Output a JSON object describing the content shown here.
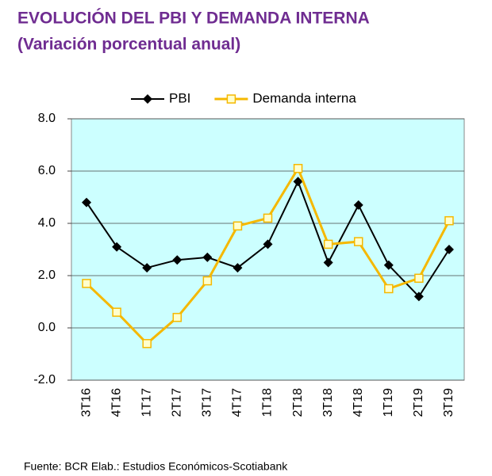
{
  "chart_data": {
    "type": "line",
    "title": "EVOLUCIÓN DEL PBI Y DEMANDA INTERNA",
    "subtitle": "(Variación porcentual anual)",
    "source": "Fuente: BCR  Elab.: Estudios Económicos-Scotiabank",
    "categories": [
      "3T16",
      "4T16",
      "1T17",
      "2T17",
      "3T17",
      "4T17",
      "1T18",
      "2T18",
      "3T18",
      "4T18",
      "1T19",
      "2T19",
      "3T19"
    ],
    "series": [
      {
        "name": "PBI",
        "color": "#000000",
        "values": [
          4.8,
          3.1,
          2.3,
          2.6,
          2.7,
          2.3,
          3.2,
          5.6,
          2.5,
          4.7,
          2.4,
          1.2,
          3.0
        ]
      },
      {
        "name": "Demanda interna",
        "color": "#f5b800",
        "values": [
          1.7,
          0.6,
          -0.6,
          0.4,
          1.8,
          3.9,
          4.2,
          6.1,
          3.2,
          3.3,
          1.5,
          1.9,
          4.1
        ]
      }
    ],
    "ylim": [
      -2,
      8
    ],
    "yticks": [
      {
        "value": -2,
        "label": "-2.0"
      },
      {
        "value": 0,
        "label": "0.0"
      },
      {
        "value": 2,
        "label": "2.0"
      },
      {
        "value": 4,
        "label": "4.0"
      },
      {
        "value": 6,
        "label": "6.0"
      },
      {
        "value": 8,
        "label": "8.0"
      }
    ],
    "grid": true,
    "legend": "top",
    "background": "#ccffff"
  }
}
